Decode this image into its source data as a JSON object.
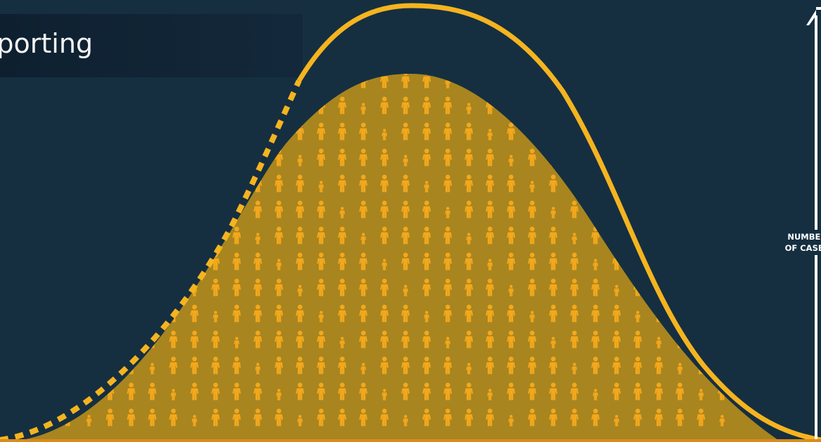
{
  "title": "eporting",
  "axis_label_line1": "NUMBER",
  "axis_label_line2": "OF CASES",
  "colors": {
    "background": "#152f41",
    "curve": "#f5b41f",
    "fill": "#a8851f",
    "people": "#f3a81c"
  },
  "icons": [
    "person-icon",
    "axis-arrow-icon"
  ]
}
